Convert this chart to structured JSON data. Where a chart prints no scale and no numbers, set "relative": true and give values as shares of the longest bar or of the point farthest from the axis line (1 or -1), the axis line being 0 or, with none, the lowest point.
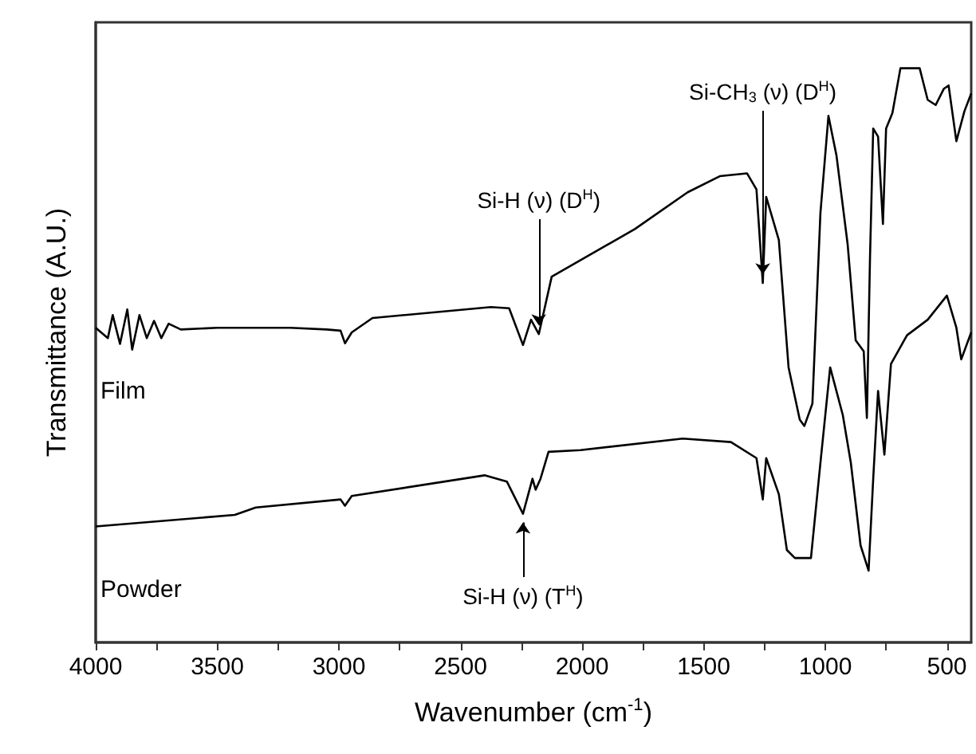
{
  "chart_data": {
    "type": "line",
    "relative": true,
    "xlabel": "Wavenumber (cm$^{-1}$)",
    "ylabel": "Transmittance (A.U.)",
    "xlim": [
      4000,
      400
    ],
    "xticks": [
      4000,
      {
        "value": 3750,
        "label": null
      },
      3500,
      {
        "value": 3250,
        "label": null
      },
      3000,
      {
        "value": 2750,
        "label": null
      },
      2500,
      {
        "value": 2250,
        "label": null
      },
      2000,
      {
        "value": 1750,
        "label": null
      },
      1500,
      {
        "value": 1250,
        "label": null
      },
      1000,
      {
        "value": 750,
        "label": null
      },
      500
    ],
    "grid": false,
    "legend": false,
    "marker": "none",
    "line_style": "solid",
    "annotations": [
      {
        "text": "Si-H (ν) (D$^{H}$)",
        "x": 2178,
        "y": 0.537
      },
      {
        "text": "Si-CH$_{3}$ (ν) (D$^{H}$)",
        "x": 1257,
        "y": 0.626
      },
      {
        "text": "Si-H (ν) (T$^{H}$)",
        "x": 2243,
        "y": 0.224
      }
    ],
    "series": [
      {
        "name": "Film",
        "color": "#000000",
        "x": [
          4000,
          3950,
          3930,
          3900,
          3870,
          3850,
          3820,
          3790,
          3760,
          3730,
          3700,
          3650,
          3500,
          3200,
          3050,
          2993,
          2975,
          2947,
          2862,
          2375,
          2300,
          2243,
          2210,
          2178,
          2125,
          1783,
          1566,
          1434,
          1322,
          1283,
          1257,
          1243,
          1191,
          1151,
          1105,
          1086,
          1053,
          1020,
          987,
          954,
          908,
          875,
          842,
          829,
          816,
          803,
          783,
          763,
          750,
          724,
          691,
          612,
          579,
          546,
          513,
          493,
          461,
          428,
          400
        ],
        "values": [
          0.548,
          0.53,
          0.57,
          0.52,
          0.58,
          0.51,
          0.57,
          0.53,
          0.56,
          0.53,
          0.555,
          0.545,
          0.548,
          0.548,
          0.545,
          0.543,
          0.521,
          0.54,
          0.565,
          0.584,
          0.582,
          0.518,
          0.562,
          0.537,
          0.637,
          0.72,
          0.784,
          0.812,
          0.817,
          0.789,
          0.626,
          0.776,
          0.701,
          0.479,
          0.388,
          0.377,
          0.416,
          0.748,
          0.917,
          0.848,
          0.693,
          0.526,
          0.507,
          0.391,
          0.673,
          0.895,
          0.881,
          0.729,
          0.895,
          0.922,
          1,
          1,
          0.945,
          0.936,
          0.964,
          0.97,
          0.873,
          0.925,
          0.956
        ]
      },
      {
        "name": "Powder",
        "color": "#000000",
        "x": [
          4000,
          3428,
          3342,
          2993,
          2975,
          2947,
          2401,
          2309,
          2243,
          2204,
          2191,
          2171,
          2138,
          2007,
          1586,
          1388,
          1283,
          1257,
          1243,
          1191,
          1158,
          1125,
          1059,
          1020,
          980,
          928,
          895,
          855,
          822,
          803,
          783,
          757,
          730,
          664,
          579,
          500,
          461,
          441,
          400
        ],
        "values": [
          0.202,
          0.222,
          0.235,
          0.249,
          0.238,
          0.255,
          0.291,
          0.28,
          0.224,
          0.285,
          0.266,
          0.285,
          0.332,
          0.335,
          0.355,
          0.349,
          0.321,
          0.249,
          0.321,
          0.258,
          0.161,
          0.147,
          0.147,
          0.313,
          0.479,
          0.396,
          0.313,
          0.169,
          0.125,
          0.285,
          0.438,
          0.327,
          0.485,
          0.535,
          0.562,
          0.604,
          0.548,
          0.493,
          0.54
        ]
      }
    ]
  }
}
